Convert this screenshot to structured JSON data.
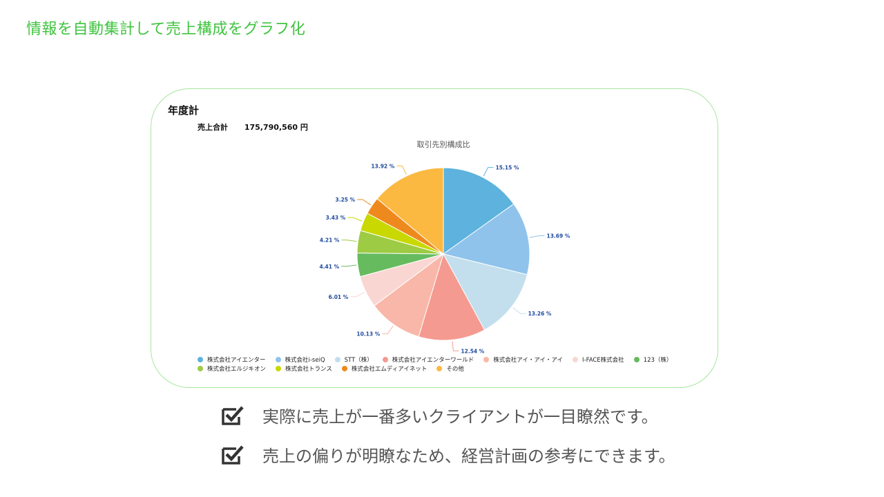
{
  "slide": {
    "title": "情報を自動集計して売上構成をグラフ化"
  },
  "card": {
    "heading": "年度計",
    "total_label": "売上合計",
    "total_value": "175,790,560 円"
  },
  "chart_data": {
    "type": "pie",
    "title": "取引先別構成比",
    "slices": [
      {
        "name": "株式会社アイエンター",
        "value": 15.15,
        "label": "15.15 %",
        "color": "#5db3dd"
      },
      {
        "name": "株式会社i-seiQ",
        "value": 13.69,
        "label": "13.69 %",
        "color": "#8fc3ec"
      },
      {
        "name": "STT（株）",
        "value": 13.26,
        "label": "13.26 %",
        "color": "#c3dfee"
      },
      {
        "name": "株式会社アイエンターワールド",
        "value": 12.54,
        "label": "12.54 %",
        "color": "#f59a90"
      },
      {
        "name": "株式会社アイ・アイ・アイ",
        "value": 10.13,
        "label": "10.13 %",
        "color": "#f8b7a8"
      },
      {
        "name": "I-FACE株式会社",
        "value": 6.01,
        "label": "6.01 %",
        "color": "#fad6d2"
      },
      {
        "name": "123（株）",
        "value": 4.41,
        "label": "4.41 %",
        "color": "#66bb5e"
      },
      {
        "name": "株式会社エルジキオン",
        "value": 4.21,
        "label": "4.21 %",
        "color": "#9dcb43"
      },
      {
        "name": "株式会社トランス",
        "value": 3.43,
        "label": "3.43 %",
        "color": "#c8d800"
      },
      {
        "name": "株式会社エムディアイネット",
        "value": 3.25,
        "label": "3.25 %",
        "color": "#ee8a1d"
      },
      {
        "name": "その他",
        "value": 13.92,
        "label": "13.92 %",
        "color": "#fbb942"
      }
    ],
    "legend_position": "bottom"
  },
  "bullets": [
    "実際に売上が一番多いクライアントが一目瞭然です。",
    "売上の偏りが明瞭なため、経営計画の参考にできます。"
  ]
}
